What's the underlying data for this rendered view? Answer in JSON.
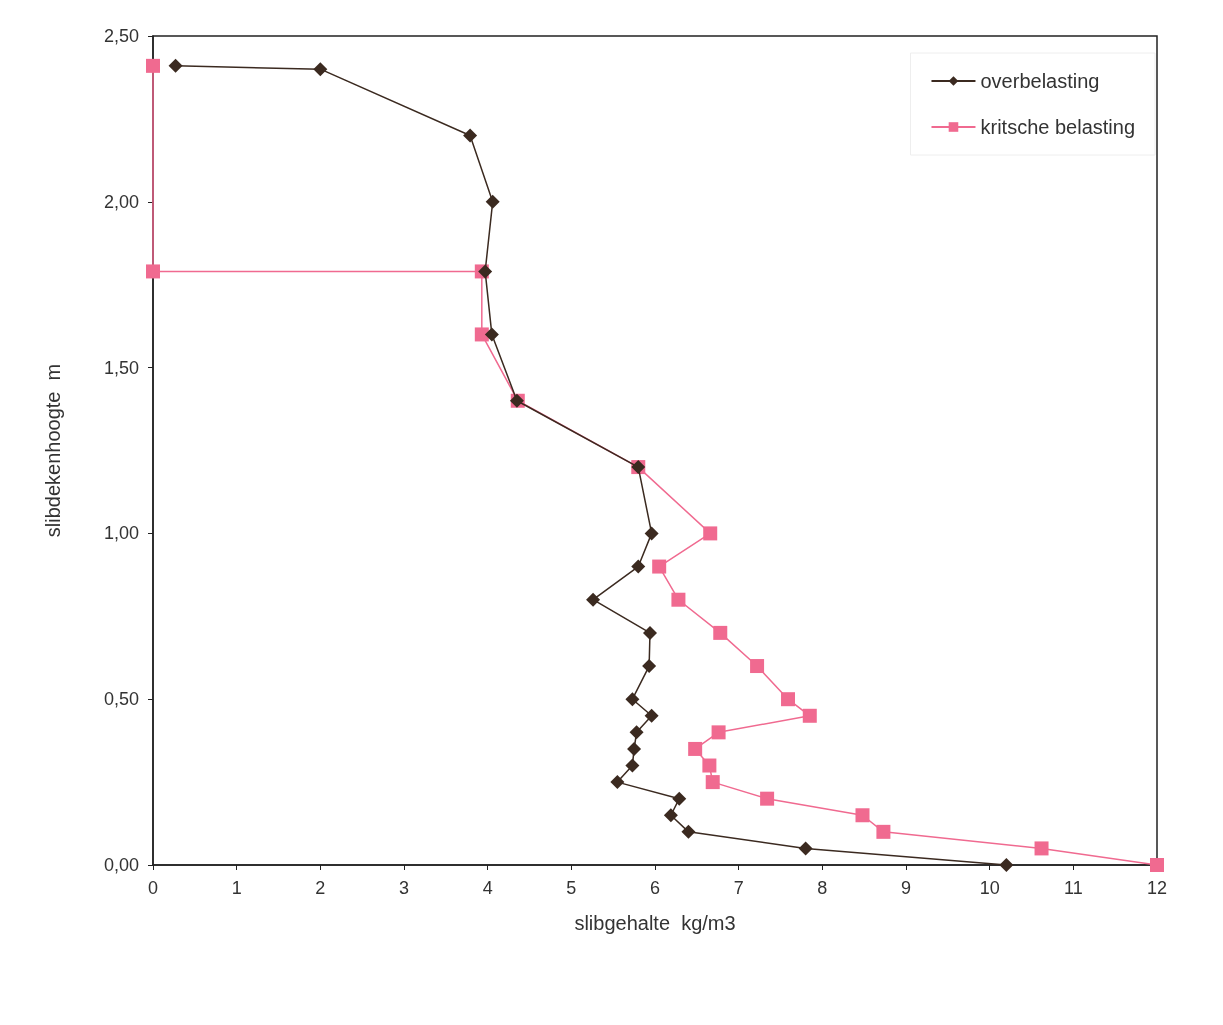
{
  "chart_data": {
    "type": "line",
    "xlabel": "slibgehalte  kg/m3",
    "ylabel": "slibdekenhoogte  m",
    "xlim": [
      0,
      12
    ],
    "xticks": [
      0,
      1,
      2,
      3,
      4,
      5,
      6,
      7,
      8,
      9,
      10,
      11,
      12
    ],
    "ylim": [
      0,
      2.5
    ],
    "yticks": [
      {
        "value": 0,
        "label": "0,00"
      },
      {
        "value": 0.5,
        "label": "0,50"
      },
      {
        "value": 1,
        "label": "1,00"
      },
      {
        "value": 1.5,
        "label": "1,50"
      },
      {
        "value": 2,
        "label": "2,00"
      },
      {
        "value": 2.5,
        "label": "2,50"
      }
    ],
    "grid": false,
    "legend": "top right",
    "line_style": "solid",
    "series": [
      {
        "name": "overbelasting",
        "color": "#3b2a20",
        "marker": "diamond",
        "x": [
          0.27,
          2.0,
          3.79,
          4.06,
          3.97,
          4.05,
          4.35,
          5.8,
          5.96,
          5.8,
          5.26,
          5.94,
          5.93,
          5.73,
          5.96,
          5.78,
          5.75,
          5.73,
          5.55,
          6.29,
          6.19,
          6.4,
          7.8,
          10.2
        ],
        "values": [
          2.41,
          2.4,
          2.2,
          2.0,
          1.79,
          1.6,
          1.4,
          1.2,
          1.0,
          0.9,
          0.8,
          0.7,
          0.6,
          0.5,
          0.45,
          0.4,
          0.35,
          0.3,
          0.25,
          0.2,
          0.15,
          0.1,
          0.05,
          0.0
        ]
      },
      {
        "name": "kritsche belasting",
        "color": "#f06a90",
        "marker": "square",
        "x": [
          0,
          0,
          3.93,
          3.93,
          4.36,
          5.8,
          6.66,
          6.05,
          6.28,
          6.78,
          7.22,
          7.59,
          7.85,
          6.76,
          6.48,
          6.65,
          6.69,
          7.34,
          8.48,
          8.73,
          10.62,
          12
        ],
        "values": [
          2.41,
          1.79,
          1.79,
          1.6,
          1.4,
          1.2,
          1.0,
          0.9,
          0.8,
          0.7,
          0.6,
          0.5,
          0.45,
          0.4,
          0.35,
          0.3,
          0.25,
          0.2,
          0.15,
          0.1,
          0.05,
          0.0
        ]
      }
    ]
  }
}
